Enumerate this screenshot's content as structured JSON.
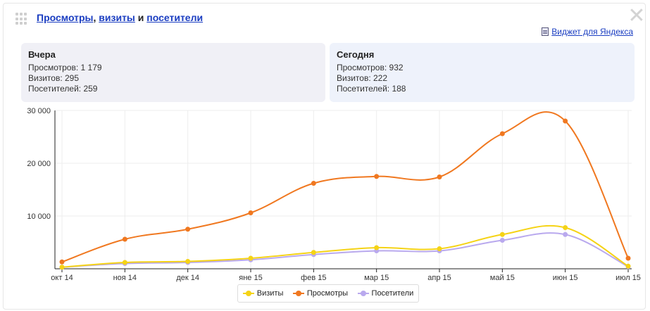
{
  "header": {
    "link_views": "Просмотры",
    "sep_comma": ",",
    "link_visits": "визиты",
    "and_word": "и",
    "link_visitors": "посетители",
    "close_glyph": "✕",
    "yandex_widget_link": "Виджет для Яндекса"
  },
  "cards": {
    "yesterday": {
      "title": "Вчера",
      "views": "Просмотров: 1 179",
      "visits": "Визитов: 295",
      "visitors": "Посетителей: 259"
    },
    "today": {
      "title": "Сегодня",
      "views": "Просмотров: 932",
      "visits": "Визитов: 222",
      "visitors": "Посетителей: 188"
    }
  },
  "colors": {
    "views": "#f07820",
    "visits": "#f5d316",
    "visitors": "#b9a9ee",
    "link": "#1a3dc1"
  },
  "chart_data": {
    "type": "line",
    "categories": [
      "окт 14",
      "ноя 14",
      "дек 14",
      "яне 15",
      "фев 15",
      "мар 15",
      "апр 15",
      "май 15",
      "июн 15",
      "июл 15"
    ],
    "ylim": [
      0,
      30000
    ],
    "yticks": [
      10000,
      20000,
      30000
    ],
    "ytick_labels": [
      "10 000",
      "20 000",
      "30 000"
    ],
    "grid": true,
    "legend_position": "bottom",
    "series": [
      {
        "name": "Визиты",
        "color": "#f5d316",
        "values": [
          300,
          1200,
          1400,
          2000,
          3100,
          4000,
          3800,
          6500,
          7800,
          500
        ]
      },
      {
        "name": "Просмотры",
        "color": "#f07820",
        "values": [
          1300,
          5600,
          7500,
          10600,
          16200,
          17500,
          17400,
          25600,
          28000,
          2000
        ]
      },
      {
        "name": "Посетители",
        "color": "#b9a9ee",
        "values": [
          300,
          1000,
          1200,
          1700,
          2700,
          3400,
          3400,
          5400,
          6500,
          400
        ]
      }
    ]
  }
}
